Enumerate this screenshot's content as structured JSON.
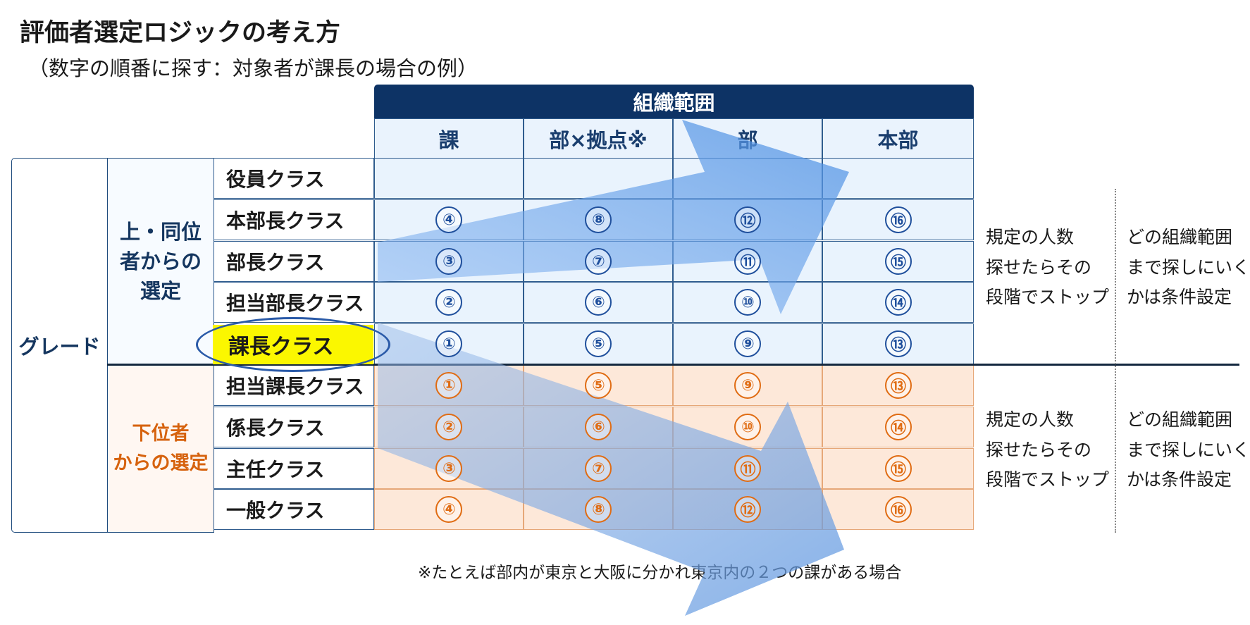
{
  "title": "評価者選定ロジックの考え方",
  "subtitle": "（数字の順番に探す：対象者が課長の場合の例）",
  "org_header": "組織範囲",
  "columns": [
    "課",
    "部×拠点※",
    "部",
    "本部"
  ],
  "row_group_label": "グレード",
  "upper_group_lines": [
    "上・同位",
    "者からの",
    "選定"
  ],
  "lower_group_lines": [
    "下位者",
    "からの選定"
  ],
  "upper_ranks": [
    "役員クラス",
    "本部長クラス",
    "部長クラス",
    "担当部長クラス",
    "課長クラス"
  ],
  "lower_ranks": [
    "担当課長クラス",
    "係長クラス",
    "主任クラス",
    "一般クラス"
  ],
  "upper_numbers": [
    [
      "",
      "",
      "",
      ""
    ],
    [
      "④",
      "⑧",
      "⑫",
      "⑯"
    ],
    [
      "③",
      "⑦",
      "⑪",
      "⑮"
    ],
    [
      "②",
      "⑥",
      "⑩",
      "⑭"
    ],
    [
      "①",
      "⑤",
      "⑨",
      "⑬"
    ]
  ],
  "lower_numbers": [
    [
      "①",
      "⑤",
      "⑨",
      "⑬"
    ],
    [
      "②",
      "⑥",
      "⑩",
      "⑭"
    ],
    [
      "③",
      "⑦",
      "⑪",
      "⑮"
    ],
    [
      "④",
      "⑧",
      "⑫",
      "⑯"
    ]
  ],
  "stop_note_lines": [
    "規定の人数",
    "探せたらその",
    "段階でストップ"
  ],
  "condition_note_lines": [
    "どの組織範囲",
    "まで探しにいく",
    "かは条件設定"
  ],
  "footnote": "※たとえば部内が東京と大阪に分かれ東京内の２つの課がある場合",
  "colors": {
    "navy": "#0d3365",
    "upper_fill": "#e9f3fd",
    "lower_fill": "#fde8d9",
    "highlight": "#fbf700",
    "orange_text": "#e06c13",
    "blue_text": "#1f4f9c"
  }
}
